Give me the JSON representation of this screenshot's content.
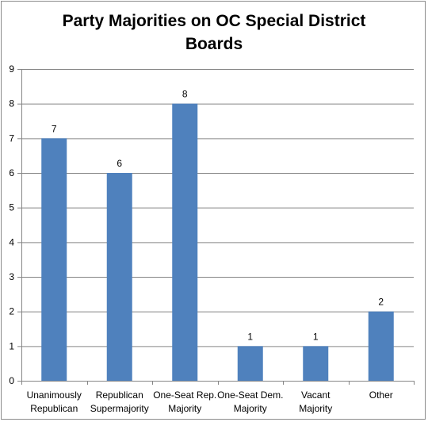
{
  "chart_data": {
    "type": "bar",
    "title_lines": [
      "Party Majorities on OC Special District",
      "Boards"
    ],
    "categories": [
      [
        "Unanimously",
        "Republican"
      ],
      [
        "Republican",
        "Supermajority"
      ],
      [
        "One-Seat Rep.",
        "Majority"
      ],
      [
        "One-Seat Dem.",
        "Majority"
      ],
      [
        "Vacant",
        "Majority"
      ],
      [
        "Other"
      ]
    ],
    "values": [
      7,
      6,
      8,
      1,
      1,
      2
    ],
    "data_labels": [
      "7",
      "6",
      "8",
      "1",
      "1",
      "2"
    ],
    "yticks": [
      "0",
      "1",
      "2",
      "3",
      "4",
      "5",
      "6",
      "7",
      "8",
      "9"
    ],
    "ylim": [
      0,
      9
    ],
    "grid": true,
    "legend": "none",
    "bar_color": "#4f81bd",
    "grid_color": "#868686"
  }
}
